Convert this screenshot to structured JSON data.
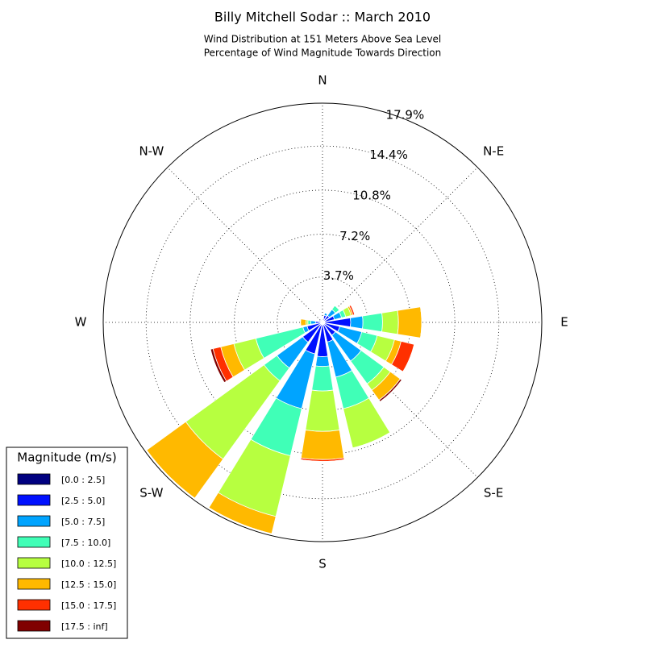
{
  "chart_data": {
    "type": "windrose",
    "title": "Billy Mitchell Sodar :: March 2010",
    "subtitle": [
      "Wind Distribution at 151 Meters Above Sea Level",
      "Percentage of Wind Magnitude Towards Direction"
    ],
    "categories": [
      "N",
      null,
      "N-E",
      null,
      "E",
      null,
      "S-E",
      null,
      "S",
      null,
      "S-W",
      null,
      "W",
      null,
      "N-W",
      null
    ],
    "rlim": [
      0,
      17.9
    ],
    "rticks": [
      {
        "value": 3.7,
        "label": "3.7%"
      },
      {
        "value": 7.2,
        "label": "7.2%"
      },
      {
        "value": 10.8,
        "label": "10.8%"
      },
      {
        "value": 14.4,
        "label": "14.4%"
      },
      {
        "value": 17.9,
        "label": "17.9%"
      }
    ],
    "grid": true,
    "legend_title": "Magnitude (m/s)",
    "legend_position": "lower left",
    "series": [
      {
        "name": "[0.0 : 2.5]",
        "color": "#000080",
        "values": [
          0.2,
          0.3,
          0.2,
          0.2,
          0.2,
          0.2,
          0.2,
          0.2,
          0.2,
          0.2,
          0.2,
          0.2,
          0.1,
          0.15,
          0.1,
          0.1
        ]
      },
      {
        "name": "[2.5 : 5.0]",
        "color": "#0010ff",
        "values": [
          0.1,
          0.3,
          0.5,
          0.8,
          2.1,
          1.25,
          1.1,
          1.45,
          2.6,
          2.45,
          1.8,
          1.1,
          0.45,
          0.15,
          0.1,
          0.15
        ]
      },
      {
        "name": "[5.0 : 7.5]",
        "color": "#00a4ff",
        "values": [
          0,
          0.2,
          0.6,
          0.6,
          1.0,
          1.85,
          2.6,
          2.95,
          0.8,
          4.6,
          2.6,
          0.35,
          0.4,
          0,
          0,
          0
        ]
      },
      {
        "name": "[7.5 : 10.0]",
        "color": "#40ffb7",
        "values": [
          0,
          0,
          0.4,
          0.35,
          1.6,
          1.3,
          2.3,
          2.65,
          2.0,
          3.95,
          1.3,
          3.95,
          0.25,
          0,
          0,
          0
        ]
      },
      {
        "name": "[10.0 : 12.5]",
        "color": "#b7ff40",
        "values": [
          0,
          0,
          0,
          0.45,
          1.3,
          1.45,
          0.65,
          3.3,
          3.3,
          5.1,
          7.9,
          1.85,
          0.15,
          0,
          0,
          0
        ]
      },
      {
        "name": "[12.5 : 15.0]",
        "color": "#ffb900",
        "values": [
          0,
          0,
          0,
          0.15,
          1.9,
          0.55,
          1.0,
          0,
          2.3,
          1.45,
          3.95,
          1.1,
          0.45,
          0,
          0,
          0
        ]
      },
      {
        "name": "[15.0 : 17.5]",
        "color": "#ff3000",
        "values": [
          0,
          0,
          0,
          0.15,
          0,
          1.1,
          0,
          0,
          0.15,
          0,
          0,
          0.65,
          0,
          0,
          0,
          0
        ]
      },
      {
        "name": "[17.5 : inf]",
        "color": "#800000",
        "values": [
          0,
          0,
          0,
          0,
          0,
          0,
          0.15,
          0,
          0,
          0,
          0,
          0.2,
          0,
          0,
          0,
          0
        ]
      }
    ]
  }
}
